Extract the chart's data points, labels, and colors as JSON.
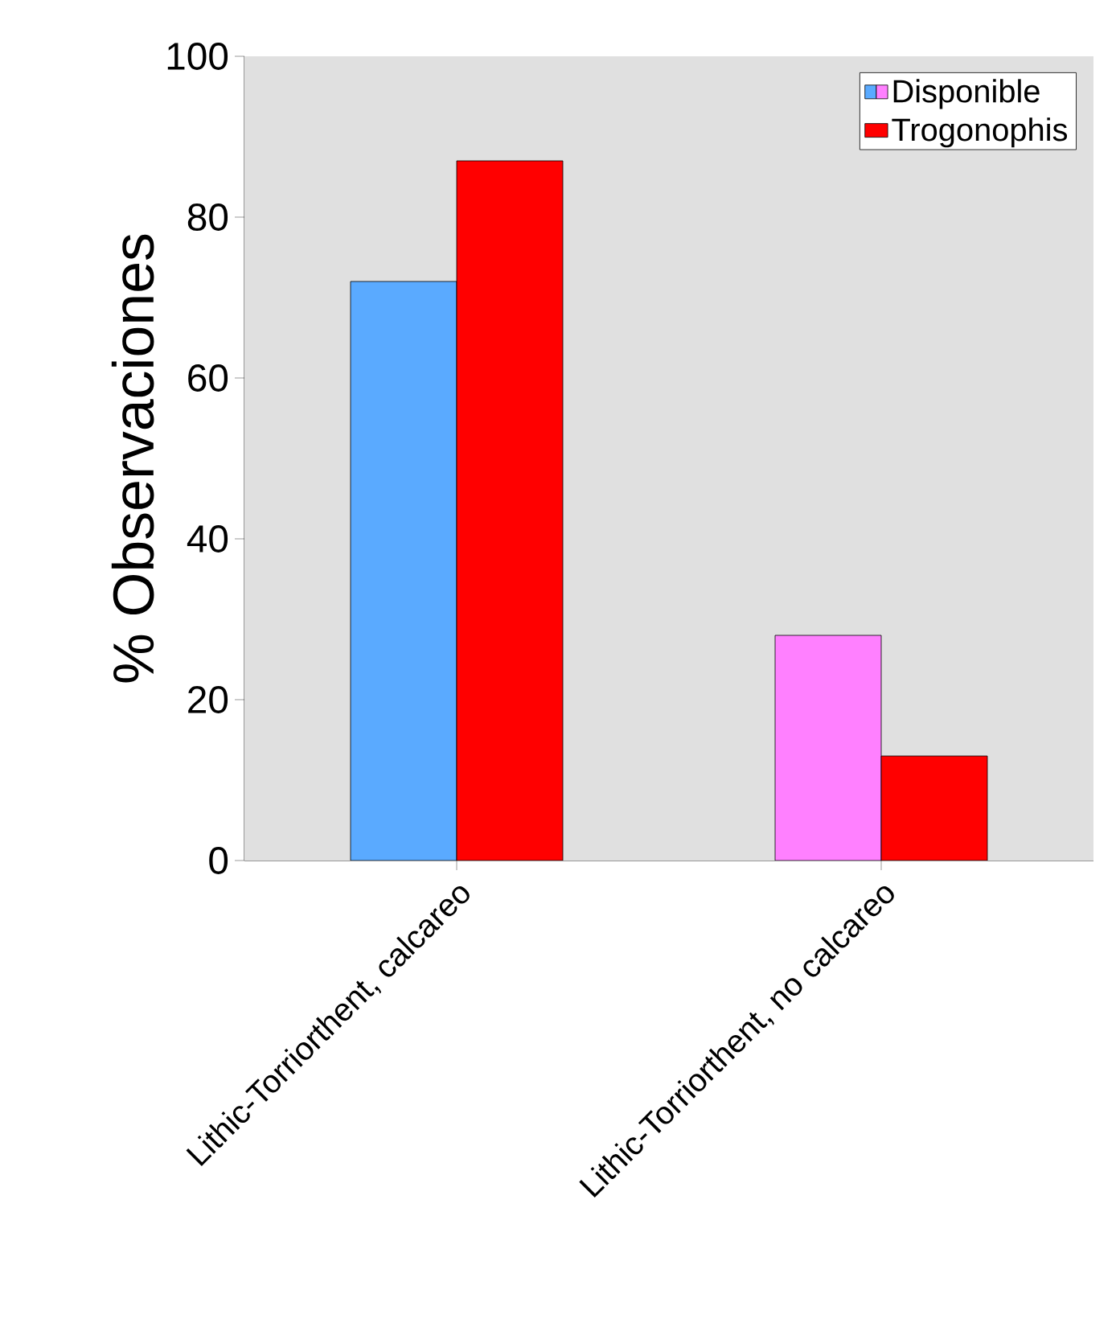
{
  "chart_data": {
    "type": "bar",
    "ylabel": "% Observaciones",
    "categories": [
      "Lithic-Torriorthent, calcareo",
      "Lithic-Torriorthent, no calcareo"
    ],
    "series": [
      {
        "name": "Disponible",
        "colors": [
          "#5aaaff",
          "#ff80ff"
        ],
        "values": [
          72,
          28
        ]
      },
      {
        "name": "Trogonophis",
        "color": "#ff0000",
        "values": [
          87,
          13
        ]
      }
    ],
    "ylim": [
      0,
      100
    ],
    "yticks": [
      0,
      20,
      40,
      60,
      80,
      100
    ],
    "grid": false,
    "legend": "top right"
  }
}
